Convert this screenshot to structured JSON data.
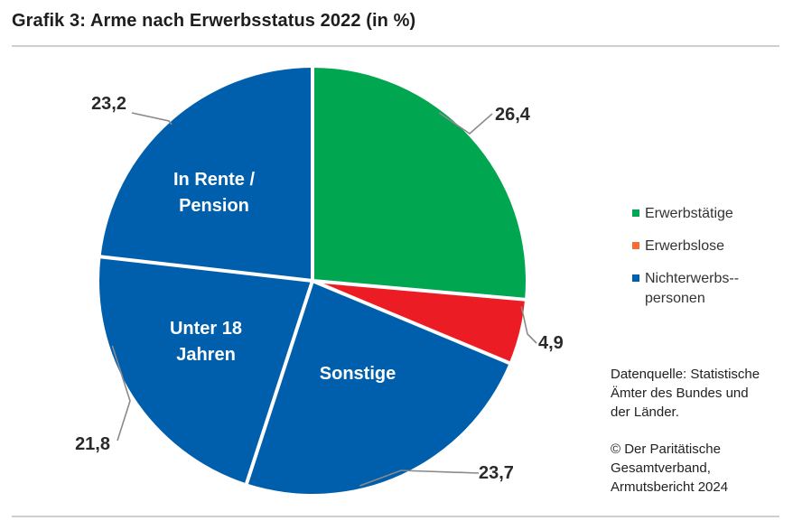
{
  "title": "Grafik 3: Arme nach Erwerbsstatus 2022 (in %)",
  "colors": {
    "erwerbstaetige": "#00a650",
    "erwerbslose_slice": "#ec1c24",
    "erwerbslose_legend": "#f26a36",
    "nichterwerbspersonen": "#005fad",
    "separator": "#ffffff",
    "leader": "#8a8a8a"
  },
  "chart_data": {
    "type": "pie",
    "start_angle_deg": 0,
    "direction": "clockwise",
    "slices": [
      {
        "value": 26.4,
        "value_label": "26,4",
        "group": "Erwerbstätige",
        "inner_label": "",
        "color": "#00a650"
      },
      {
        "value": 4.9,
        "value_label": "4,9",
        "group": "Erwerbslose",
        "inner_label": "",
        "color": "#ec1c24"
      },
      {
        "value": 23.7,
        "value_label": "23,7",
        "group": "Nichterwerbspersonen",
        "inner_label": "Sonstige",
        "color": "#005fad"
      },
      {
        "value": 21.8,
        "value_label": "21,8",
        "group": "Nichterwerbspersonen",
        "inner_label": "Unter 18 Jahren",
        "color": "#005fad"
      },
      {
        "value": 23.2,
        "value_label": "23,2",
        "group": "Nichterwerbspersonen",
        "inner_label": "In Rente / Pension",
        "color": "#005fad"
      }
    ],
    "legend_position": "right"
  },
  "legend": [
    {
      "label": "Erwerbstätige",
      "color": "#00a650"
    },
    {
      "label": "Erwerbslose",
      "color": "#f26a36"
    },
    {
      "label": "Nichterwerbs-­personen",
      "color": "#005fad"
    }
  ],
  "source": {
    "line1": "Datenquelle: Statistische",
    "line2": "Ämter des Bundes und",
    "line3": "der Länder.",
    "copyright1": "© Der Paritätische",
    "copyright2": "Gesamtverband,",
    "copyright3": "Armutsbericht 2024"
  }
}
